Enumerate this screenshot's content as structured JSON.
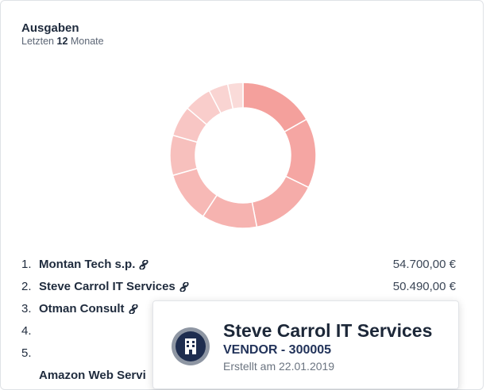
{
  "header": {
    "title": "Ausgaben",
    "subtitle_prefix": "Letzten",
    "subtitle_count": "12",
    "subtitle_suffix": "Monate"
  },
  "chart_data": {
    "type": "donut",
    "values": [
      54700,
      50490,
      48000,
      40000,
      37000,
      29000,
      22000,
      20000,
      14000,
      11000
    ],
    "colors": [
      "#f4a09c",
      "#f5a6a3",
      "#f5aca9",
      "#f6b3b0",
      "#f7b9b6",
      "#f7c0bd",
      "#f8c6c4",
      "#f9cdcb",
      "#f9d4d2",
      "#fadbd9"
    ]
  },
  "list": [
    {
      "rank": "1.",
      "name": "Montan Tech s.p.",
      "amount": "54.700,00 €"
    },
    {
      "rank": "2.",
      "name": "Steve Carrol IT Services",
      "amount": "50.490,00 €"
    },
    {
      "rank": "3.",
      "name": "Otman Consult"
    },
    {
      "rank": "4."
    },
    {
      "rank": "5."
    },
    {
      "name": "Amazon Web Servi"
    }
  ],
  "tooltip": {
    "title": "Steve Carrol IT Services",
    "subtitle": "VENDOR - 300005",
    "created": "Erstellt am 22.01.2019"
  }
}
